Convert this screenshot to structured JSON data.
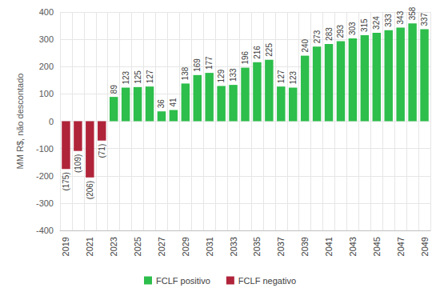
{
  "chart_data": {
    "type": "bar",
    "y_label": "MM R$, não descontado",
    "categories": [
      "2019",
      null,
      "2021",
      null,
      "2023",
      null,
      "2025",
      null,
      "2027",
      null,
      "2029",
      null,
      "2031",
      null,
      "2033",
      null,
      "2035",
      null,
      "2037",
      null,
      "2039",
      null,
      "2041",
      null,
      "2043",
      null,
      "2045",
      null,
      "2047",
      null,
      "2049"
    ],
    "series": [
      {
        "name": "FCLF positivo",
        "color": "#2dbe4b",
        "values": [
          null,
          null,
          null,
          null,
          89,
          123,
          125,
          127,
          36,
          41,
          138,
          169,
          177,
          129,
          133,
          196,
          216,
          225,
          127,
          123,
          240,
          273,
          283,
          293,
          303,
          315,
          324,
          333,
          343,
          358,
          337
        ]
      },
      {
        "name": "FCLF negativo",
        "color": "#b0243a",
        "values": [
          -175,
          -109,
          -206,
          -71,
          null,
          null,
          null,
          null,
          null,
          null,
          null,
          null,
          null,
          null,
          null,
          null,
          null,
          null,
          null,
          null,
          null,
          null,
          null,
          null,
          null,
          null,
          null,
          null,
          null,
          null,
          null
        ],
        "value_labels": [
          "(175)",
          "(109)",
          "(206)",
          "(71)",
          null,
          null,
          null,
          null,
          null,
          null,
          null,
          null,
          null,
          null,
          null,
          null,
          null,
          null,
          null,
          null,
          null,
          null,
          null,
          null,
          null,
          null,
          null,
          null,
          null,
          null,
          null
        ]
      }
    ],
    "ylim": [
      -400,
      400
    ],
    "yticks": [
      -400,
      -300,
      -200,
      -100,
      0,
      100,
      200,
      300,
      400
    ],
    "grid": true,
    "legend": "bottom",
    "data_labels": true
  }
}
